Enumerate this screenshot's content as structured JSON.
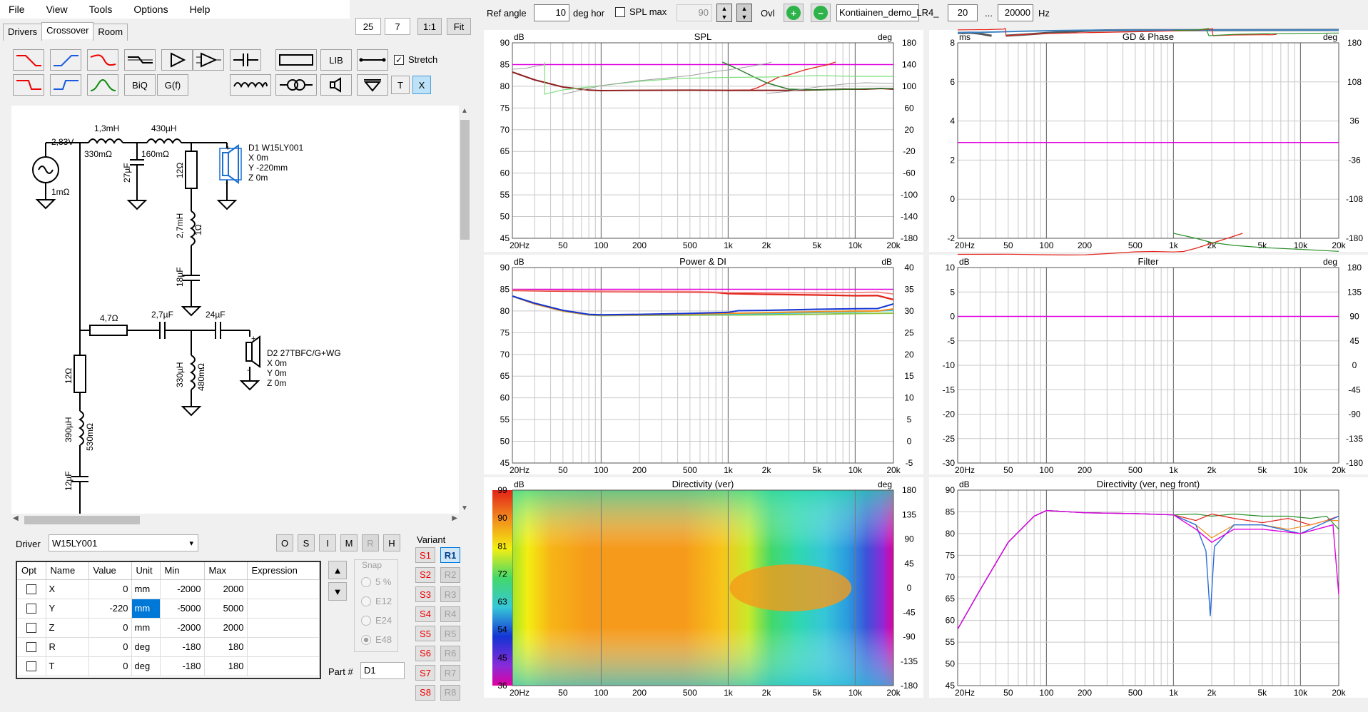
{
  "menu": [
    "File",
    "View",
    "Tools",
    "Options",
    "Help"
  ],
  "tabs": [
    "Drivers",
    "Crossover",
    "Room"
  ],
  "zoom": {
    "a": "25",
    "b": "7",
    "one_to_one": "1:1",
    "fit": "Fit"
  },
  "toolbar": {
    "lib": "LIB",
    "biq": "BiQ",
    "gf": "G(f)",
    "t": "T",
    "x": "X",
    "stretch": "Stretch"
  },
  "top": {
    "ref_angle_label": "Ref angle",
    "ref_angle": "10",
    "deg_hor": "deg hor",
    "spl_max_label": "SPL max",
    "spl_max": "90",
    "ovl": "Ovl",
    "project": "Kontiainen_demo_LR4_",
    "f_lo": "20",
    "dots": "...",
    "f_hi": "20000",
    "hz": "Hz"
  },
  "schematic": {
    "source_v": "2,83V",
    "source_r": "1mΩ",
    "l1": "1,3mH",
    "l1r": "330mΩ",
    "l2": "430µH",
    "l2r": "160mΩ",
    "c1": "27µF",
    "r1": "12Ω",
    "l3": "2,7mH",
    "l3r": "1Ω",
    "c2": "18µF",
    "d1": [
      "D1 W15LY001",
      "X 0m",
      "Y -220mm",
      "Z 0m"
    ],
    "r2": "4,7Ω",
    "c3": "2,7µF",
    "c4": "24µF",
    "l4": "330µH",
    "l4r": "480mΩ",
    "d2": [
      "D2 27TBFC/G+WG",
      "X 0m",
      "Y 0m",
      "Z 0m"
    ],
    "r3": "12Ω",
    "l5": "390µH",
    "l5r": "530mΩ",
    "c5": "12µF"
  },
  "driver_label": "Driver",
  "driver_value": "W15LY001",
  "ohbtns": [
    "O",
    "S",
    "I",
    "M",
    "R",
    "H"
  ],
  "table": {
    "headers": [
      "Opt",
      "Name",
      "Value",
      "Unit",
      "Min",
      "Max",
      "Expression"
    ],
    "rows": [
      [
        "",
        "X",
        "0",
        "mm",
        "-2000",
        "2000",
        ""
      ],
      [
        "",
        "Y",
        "-220",
        "mm",
        "-5000",
        "5000",
        ""
      ],
      [
        "",
        "Z",
        "0",
        "mm",
        "-2000",
        "2000",
        ""
      ],
      [
        "",
        "R",
        "0",
        "deg",
        "-180",
        "180",
        ""
      ],
      [
        "",
        "T",
        "0",
        "deg",
        "-180",
        "180",
        ""
      ]
    ]
  },
  "snap": {
    "label": "Snap",
    "opts": [
      "5 %",
      "E12",
      "E24",
      "E48"
    ]
  },
  "part": {
    "label": "Part #",
    "value": "D1"
  },
  "variant": {
    "label": "Variant",
    "s": [
      "S1",
      "S2",
      "S3",
      "S4",
      "S5",
      "S6",
      "S7",
      "S8"
    ],
    "r": [
      "R1",
      "R2",
      "R3",
      "R4",
      "R5",
      "R6",
      "R7",
      "R8"
    ]
  },
  "charts": {
    "spl": {
      "title": "SPL",
      "yl": "dB",
      "yr": "deg",
      "yticks": [
        "90",
        "85",
        "80",
        "75",
        "70",
        "65",
        "60",
        "55",
        "50",
        "45"
      ],
      "rticks": [
        "180",
        "140",
        "100",
        "60",
        "20",
        "-20",
        "-60",
        "-100",
        "-140",
        "-180"
      ]
    },
    "gd": {
      "title": "GD & Phase",
      "yl": "ms",
      "yr": "deg",
      "yticks": [
        "8",
        "6",
        "4",
        "2",
        "0",
        "-2"
      ],
      "rticks": [
        "180",
        "108",
        "36",
        "-36",
        "-108",
        "-180"
      ]
    },
    "power": {
      "title": "Power & DI",
      "yl": "dB",
      "yr": "dB",
      "yticks": [
        "90",
        "85",
        "80",
        "75",
        "70",
        "65",
        "60",
        "55",
        "50",
        "45"
      ],
      "rticks": [
        "40",
        "35",
        "30",
        "25",
        "20",
        "15",
        "10",
        "5",
        "0",
        "-5"
      ]
    },
    "filter": {
      "title": "Filter",
      "yl": "dB",
      "yr": "deg",
      "yticks": [
        "10",
        "5",
        "0",
        "-5",
        "-10",
        "-15",
        "-20",
        "-25",
        "-30"
      ],
      "rticks": [
        "180",
        "135",
        "90",
        "45",
        "0",
        "-45",
        "-90",
        "-135",
        "-180"
      ]
    },
    "dirv": {
      "title": "Directivity (ver)",
      "yl": "dB",
      "yr": "deg",
      "yticks": [
        "99",
        "90",
        "81",
        "72",
        "63",
        "54",
        "45",
        "36"
      ],
      "rticks": [
        "180",
        "135",
        "90",
        "45",
        "0",
        "-45",
        "-90",
        "-135",
        "-180"
      ]
    },
    "dirneg": {
      "title": "Directivity (ver, neg front)",
      "yl": "dB",
      "yticks": [
        "90",
        "85",
        "80",
        "75",
        "70",
        "65",
        "60",
        "55",
        "50",
        "45"
      ]
    },
    "xticks": [
      "20Hz",
      "50",
      "100",
      "200",
      "500",
      "1k",
      "2k",
      "5k",
      "10k",
      "20k"
    ]
  },
  "colors": {
    "accent": "#0078d7",
    "pink": "#e000e0"
  }
}
